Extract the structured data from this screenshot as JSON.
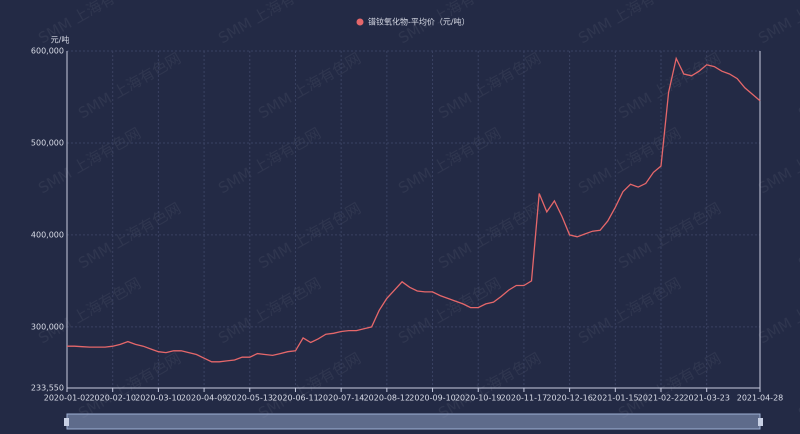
{
  "chart_data": {
    "type": "line",
    "watermark": "SMM 上海有色网",
    "y_unit": "元/吨",
    "categories": [
      "2020-01-02",
      null,
      null,
      null,
      null,
      null,
      "2020-02-10",
      null,
      null,
      null,
      null,
      null,
      "2020-03-10",
      null,
      null,
      null,
      null,
      null,
      "2020-04-09",
      null,
      null,
      null,
      null,
      null,
      "2020-05-13",
      null,
      null,
      null,
      null,
      null,
      "2020-06-11",
      null,
      null,
      null,
      null,
      null,
      "2020-07-14",
      null,
      null,
      null,
      null,
      null,
      "2020-08-12",
      null,
      null,
      null,
      null,
      null,
      "2020-09-10",
      null,
      null,
      null,
      null,
      null,
      "2020-10-19",
      null,
      null,
      null,
      null,
      null,
      "2020-11-17",
      null,
      null,
      null,
      null,
      null,
      "2020-12-16",
      null,
      null,
      null,
      null,
      null,
      "2021-01-15",
      null,
      null,
      null,
      null,
      null,
      "2021-02-22",
      null,
      null,
      null,
      null,
      null,
      "2021-03-23",
      null,
      null,
      null,
      null,
      null,
      null,
      "2021-04-28"
    ],
    "series": [
      {
        "name": "镨钕氧化物-平均价（元/吨）",
        "color": "#e5676a",
        "values": [
          279000,
          279000,
          278500,
          278000,
          278000,
          278000,
          279000,
          281000,
          284000,
          281000,
          279000,
          276000,
          273000,
          272000,
          274000,
          274000,
          272000,
          270000,
          266000,
          262000,
          262000,
          263000,
          264000,
          267000,
          267000,
          271000,
          270000,
          269000,
          271000,
          273000,
          274000,
          288000,
          283000,
          287000,
          292000,
          293000,
          295000,
          296000,
          296000,
          298000,
          300000,
          318000,
          331000,
          340000,
          349000,
          343000,
          339000,
          338000,
          338000,
          334000,
          331000,
          328000,
          325000,
          321000,
          321000,
          325000,
          327000,
          333000,
          340000,
          345000,
          345000,
          350000,
          445000,
          425000,
          437000,
          420000,
          400000,
          398000,
          401000,
          404000,
          405000,
          415000,
          430000,
          447000,
          455000,
          452000,
          456000,
          468000,
          475000,
          555000,
          592000,
          575000,
          573000,
          578000,
          585000,
          583000,
          578000,
          575000,
          570000,
          560000,
          553000,
          546000
        ]
      }
    ],
    "ylim": [
      233550,
      600000
    ],
    "yticks": [
      {
        "value": 233550,
        "label": "233,550"
      },
      {
        "value": 300000,
        "label": "300,000"
      },
      {
        "value": 400000,
        "label": "400,000"
      },
      {
        "value": 500000,
        "label": "500,000"
      },
      {
        "value": 600000,
        "label": "600,000"
      }
    ],
    "grid": true
  }
}
